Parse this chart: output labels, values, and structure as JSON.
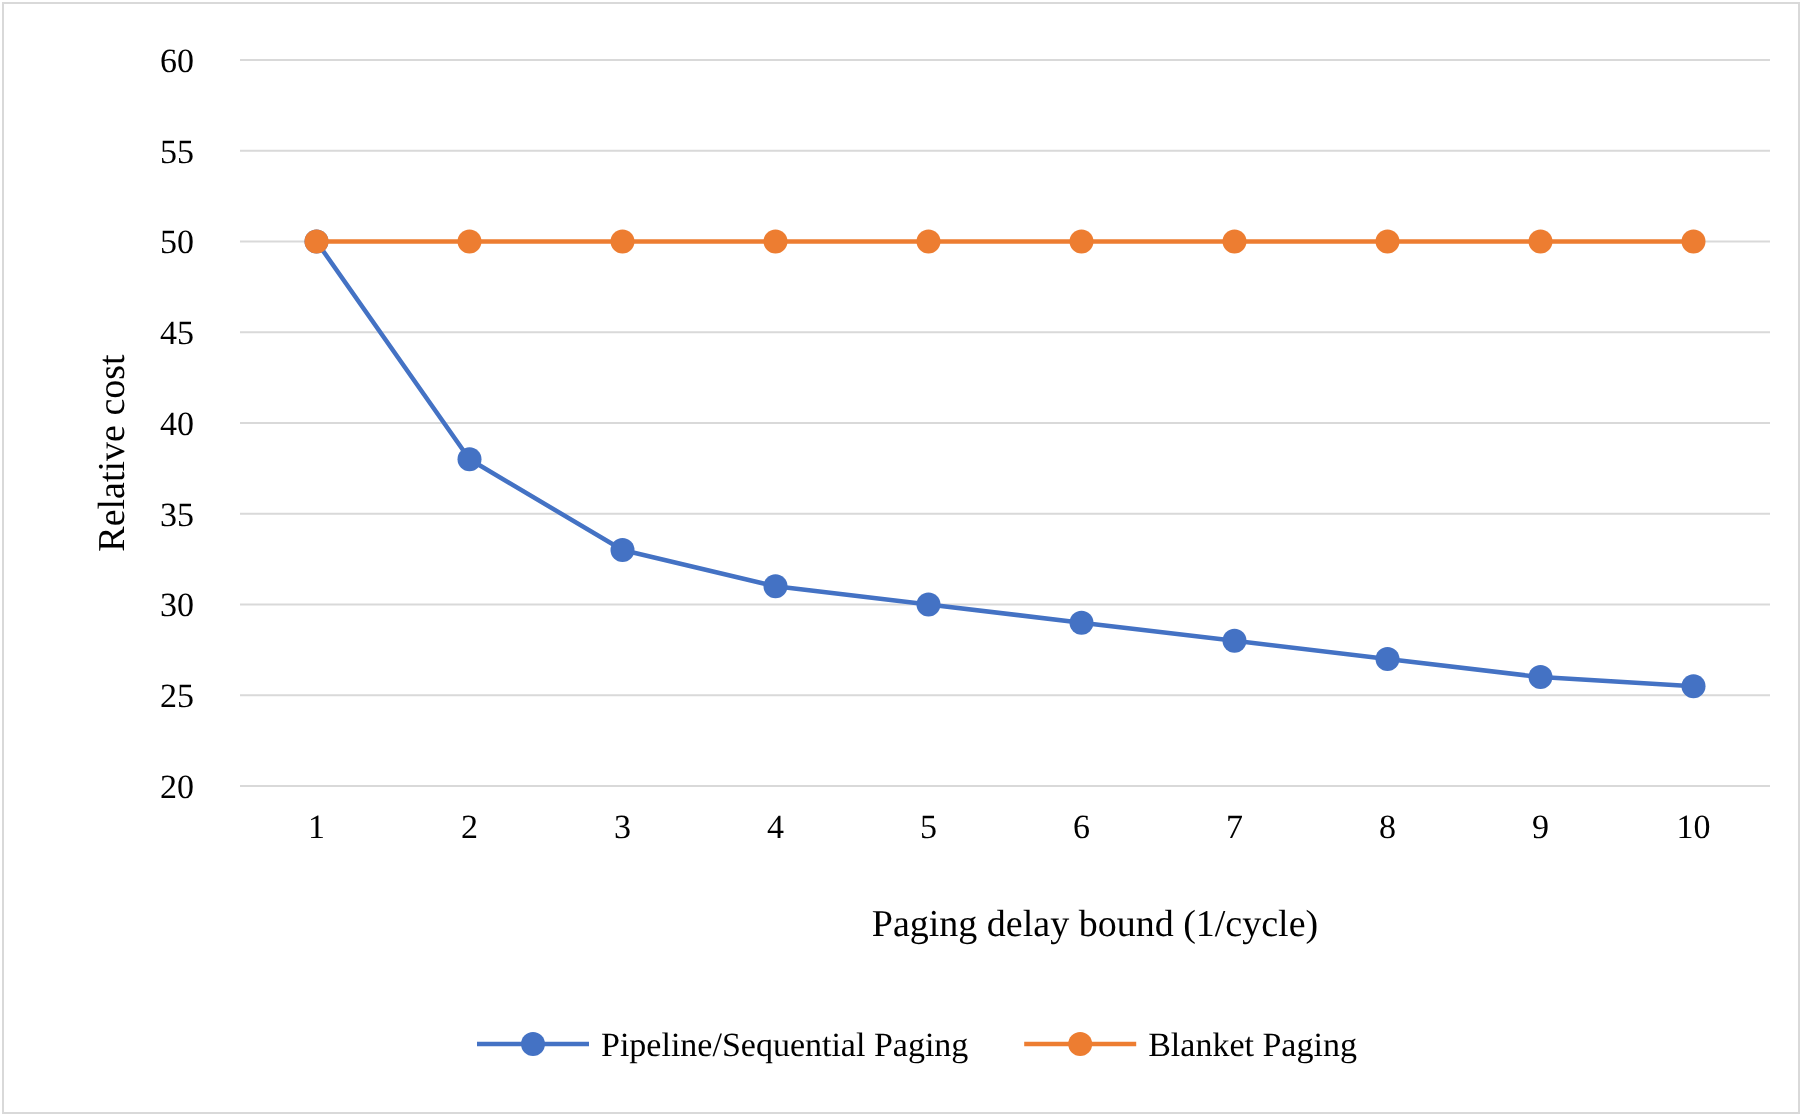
{
  "chart_data": {
    "type": "line",
    "xlabel": "Paging delay bound (1/cycle)",
    "ylabel": "Relative cost",
    "categories": [
      "1",
      "2",
      "3",
      "4",
      "5",
      "6",
      "7",
      "8",
      "9",
      "10"
    ],
    "series": [
      {
        "name": "Pipeline/Sequential Paging",
        "color": "#4472c4",
        "values": [
          50,
          38,
          33,
          31,
          30,
          29,
          28,
          27,
          26,
          25.5
        ]
      },
      {
        "name": "Blanket Paging",
        "color": "#ed7d31",
        "values": [
          50,
          50,
          50,
          50,
          50,
          50,
          50,
          50,
          50,
          50
        ]
      }
    ],
    "ylim": [
      20,
      60
    ],
    "yticks": [
      20,
      25,
      30,
      35,
      40,
      45,
      50,
      55,
      60
    ],
    "grid": "y",
    "legend": "bottom",
    "marker": "circle",
    "line_style": "solid"
  }
}
